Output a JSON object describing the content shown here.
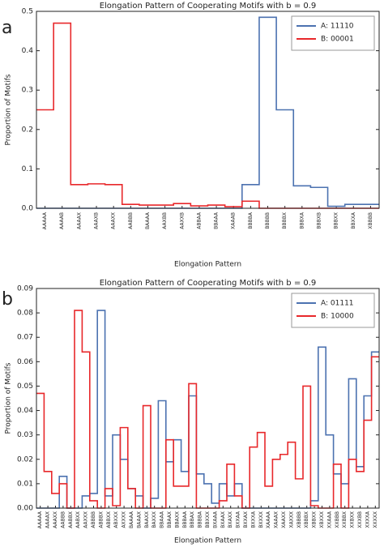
{
  "chart_data": [
    {
      "type": "step",
      "panel_label": "a",
      "title": "Elongation Pattern of Cooperating Motifs with b = 0.9",
      "xlabel": "Elongation Pattern",
      "ylabel": "Proportion of Motifs",
      "categories": [
        "AAAAA",
        "AAAAB",
        "AAAAX",
        "AAAXB",
        "AAAXX",
        "AABBB",
        "BAAAA",
        "AAXBB",
        "AAXXB",
        "ABBAA",
        "BBAAA",
        "XAAAB",
        "BBBBA",
        "BBBBB",
        "BBBBX",
        "BBBXA",
        "BBBXB",
        "BBBXX",
        "BBXXA",
        "XBBBB"
      ],
      "series": [
        {
          "name": "A: 11110",
          "color": "#4c72b0",
          "values": [
            0,
            0,
            0,
            0,
            0,
            0,
            0,
            0,
            0,
            0,
            0,
            0,
            0.06,
            0.485,
            0.25,
            0.057,
            0.053,
            0.005,
            0.01,
            0.01
          ]
        },
        {
          "name": "B: 00001",
          "color": "#e8282b",
          "values": [
            0.25,
            0.47,
            0.06,
            0.062,
            0.06,
            0.01,
            0.008,
            0.008,
            0.012,
            0.006,
            0.008,
            0.004,
            0.018,
            0,
            0,
            0,
            0,
            0,
            0,
            0
          ]
        }
      ],
      "ylim": [
        0,
        0.5
      ],
      "yticks": [
        {
          "value": 0,
          "label": "0.0"
        },
        0.1,
        0.2,
        0.3,
        0.4,
        0.5
      ],
      "legend": "upper right"
    },
    {
      "type": "step",
      "panel_label": "b",
      "title": "Elongation Pattern of Cooperating Motifs with b = 0.9",
      "xlabel": "Elongation Pattern",
      "ylabel": "Proportion of Motifs",
      "categories": [
        "AAAAA",
        "AAAAX",
        "AAAXX",
        "AABBB",
        "AABBX",
        "AABXX",
        "AAXXX",
        "ABBBB",
        "ABBBX",
        "ABBXX",
        "ABXXX",
        "AXXXX",
        "BAAAA",
        "BAAAX",
        "BAAXX",
        "BAXXX",
        "BBAAA",
        "BBAAX",
        "BBAXX",
        "BBBAA",
        "BBBAX",
        "BBBBA",
        "BBXXX",
        "BXAAA",
        "BXAAX",
        "BXAXX",
        "BXXAA",
        "BXXAX",
        "BXXXA",
        "BXXXX",
        "XAAAA",
        "XAAAX",
        "XAAXX",
        "XAXXX",
        "XBBBB",
        "XBBBX",
        "XBBXX",
        "XBXXX",
        "XXAAA",
        "XXBBB",
        "XXBBX",
        "XXBXX",
        "XXXBB",
        "XXXXA",
        "XXXXX"
      ],
      "series": [
        {
          "name": "A: 01111",
          "color": "#4c72b0",
          "values": [
            0,
            0,
            0,
            0.013,
            0,
            0,
            0.005,
            0.006,
            0.081,
            0.005,
            0.03,
            0.02,
            0.008,
            0.005,
            0,
            0.004,
            0.044,
            0.019,
            0.028,
            0.015,
            0.046,
            0.014,
            0.01,
            0.002,
            0.01,
            0.005,
            0.01,
            0,
            0,
            0,
            0,
            0,
            0,
            0,
            0,
            0,
            0.003,
            0.066,
            0.03,
            0.014,
            0.01,
            0.053,
            0.017,
            0.046,
            0.064
          ]
        },
        {
          "name": "B: 10000",
          "color": "#e8282b",
          "values": [
            0.047,
            0.015,
            0.006,
            0.01,
            0,
            0.081,
            0.064,
            0.003,
            0,
            0.008,
            0.001,
            0.033,
            0.008,
            0,
            0.042,
            0,
            0,
            0.028,
            0.009,
            0.009,
            0.051,
            0,
            0,
            0,
            0.003,
            0.018,
            0.005,
            0,
            0.025,
            0.031,
            0.009,
            0.02,
            0.022,
            0.027,
            0.012,
            0.05,
            0.001,
            0,
            0,
            0.018,
            0,
            0.02,
            0.015,
            0.036,
            0.062
          ]
        }
      ],
      "ylim": [
        0,
        0.09
      ],
      "yticks": [
        {
          "value": 0,
          "label": "0.00"
        },
        0.01,
        0.02,
        0.03,
        0.04,
        0.05,
        0.06,
        0.07,
        0.08,
        0.09
      ],
      "legend": "upper right"
    }
  ]
}
